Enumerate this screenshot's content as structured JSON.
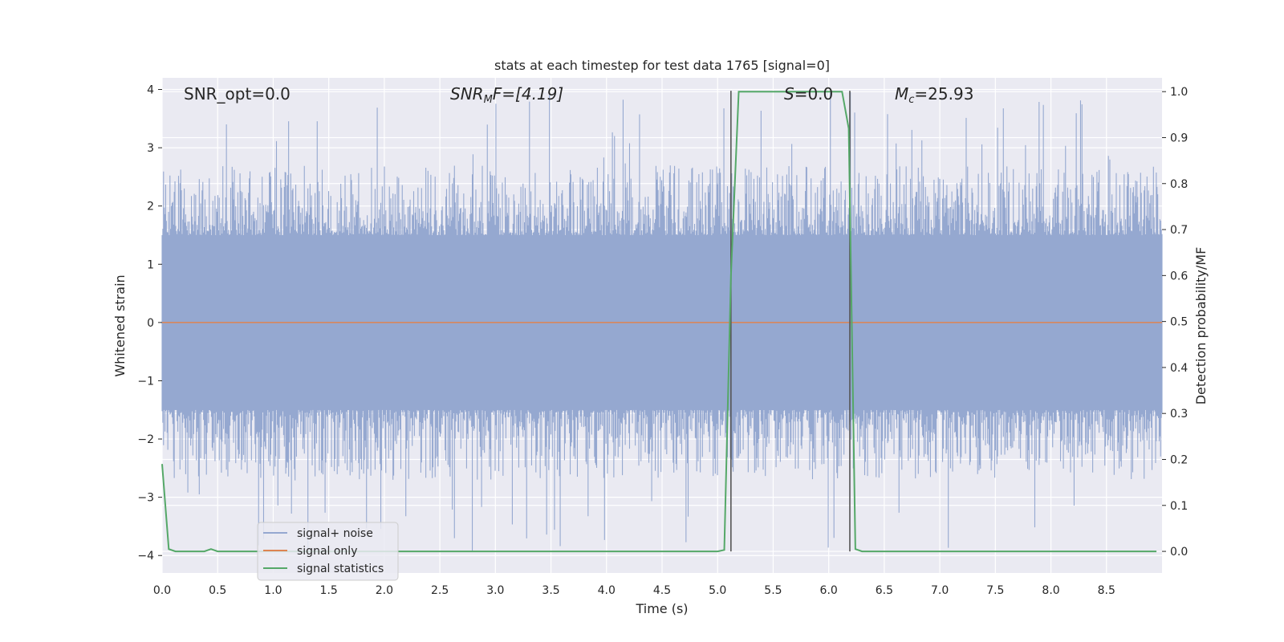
{
  "chart_data": {
    "type": "line",
    "title": "stats at each timestep for test data 1765 [signal=0]",
    "xlabel": "Time (s)",
    "ylabel_left": "Whitened strain",
    "ylabel_right": "Detection probability/MF",
    "xlim": [
      0.0,
      9.0
    ],
    "ylim_left": [
      -4.3,
      4.2
    ],
    "ylim_right": [
      -0.047,
      1.03
    ],
    "xticks": [
      "0.0",
      "0.5",
      "1.0",
      "1.5",
      "2.0",
      "2.5",
      "3.0",
      "3.5",
      "4.0",
      "4.5",
      "5.0",
      "5.5",
      "6.0",
      "6.5",
      "7.0",
      "7.5",
      "8.0",
      "8.5"
    ],
    "yticks_left": [
      "4",
      "3",
      "2",
      "1",
      "0",
      "−1",
      "−2",
      "−3",
      "−4"
    ],
    "yticks_right": [
      "1.0",
      "0.9",
      "0.8",
      "0.7",
      "0.6",
      "0.5",
      "0.4",
      "0.3",
      "0.2",
      "0.1",
      "0.0"
    ],
    "grid": true,
    "legend_position": "lower-left",
    "annotations": {
      "snr_opt": "SNR_opt=0.0",
      "snr_mf_prefix": "SNR",
      "snr_mf_sub": "M",
      "snr_mf_suffix": "F=[4.19]",
      "s_prefix": "S",
      "s_suffix": "=0.0",
      "mc_prefix": "M",
      "mc_sub": "c",
      "mc_suffix": "=25.93"
    },
    "series": [
      {
        "name": "signal+ noise",
        "color": "#95a8d0",
        "axis": "left",
        "note_kind": "dense noise band",
        "band": [
          -1.5,
          1.5
        ],
        "peak_range": [
          -4.0,
          4.0
        ]
      },
      {
        "name": "signal only",
        "color": "#dd8452",
        "axis": "left",
        "x": [
          0.0,
          9.0
        ],
        "y": [
          0.0,
          0.0
        ]
      },
      {
        "name": "signal statistics",
        "color": "#55a868",
        "axis": "right",
        "x": [
          0.0,
          0.06,
          0.12,
          0.2,
          0.3,
          0.38,
          0.44,
          0.5,
          0.56,
          1.0,
          2.0,
          3.0,
          4.0,
          5.0,
          5.06,
          5.12,
          5.19,
          5.3,
          6.0,
          6.12,
          6.18,
          6.24,
          6.3,
          7.0,
          8.0,
          8.95
        ],
        "y": [
          0.19,
          0.005,
          0.0,
          0.0,
          0.0,
          0.0,
          0.005,
          0.0,
          0.0,
          0.0,
          0.0,
          0.0,
          0.0,
          0.0,
          0.003,
          0.6,
          1.0,
          1.0,
          1.0,
          1.0,
          0.92,
          0.005,
          0.0,
          0.0,
          0.0,
          0.0
        ]
      }
    ],
    "vlines": [
      5.12,
      6.19
    ],
    "vline_color": "#555555",
    "colors": {
      "plot_background": "#eaeaf2",
      "grid": "#ffffff",
      "text": "#262626"
    }
  }
}
